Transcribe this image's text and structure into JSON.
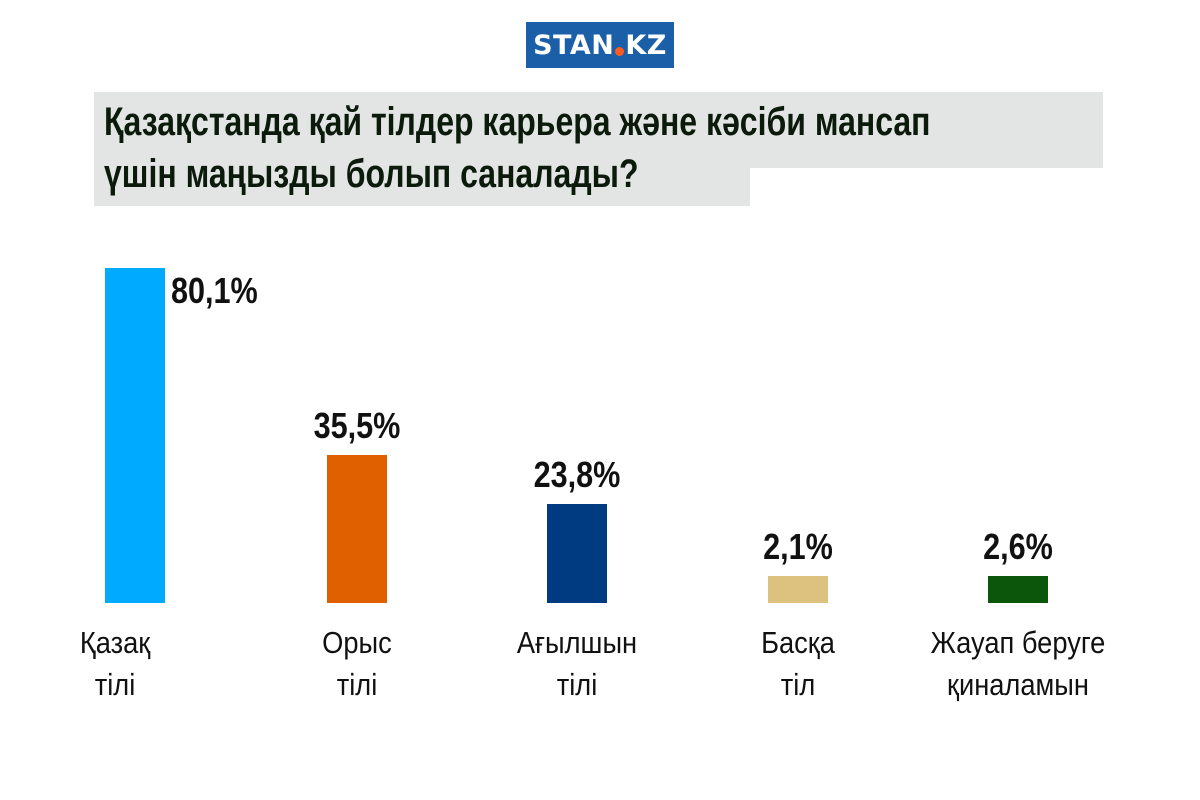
{
  "logo": {
    "text_left": "STAN",
    "text_right": "KZ"
  },
  "chart_data": {
    "type": "bar",
    "title": "Қазақстанда қай тілдер карьера және кәсіби мансап\nүшін маңызды болып саналады?",
    "categories": [
      "Қазақ\nтілі",
      "Орыс\nтілі",
      "Ағылшын\nтілі",
      "Басқа\nтіл",
      "Жауап беруге\nқиналамын"
    ],
    "values": [
      80.1,
      35.5,
      23.8,
      2.1,
      2.6
    ],
    "value_labels": [
      "80,1%",
      "35,5%",
      "23,8%",
      "2,1%",
      "2,6%"
    ],
    "colors": [
      "#00aaff",
      "#e06000",
      "#003a80",
      "#dcc27e",
      "#0b560b"
    ],
    "unit": "%",
    "grid": false,
    "legend": "none"
  }
}
